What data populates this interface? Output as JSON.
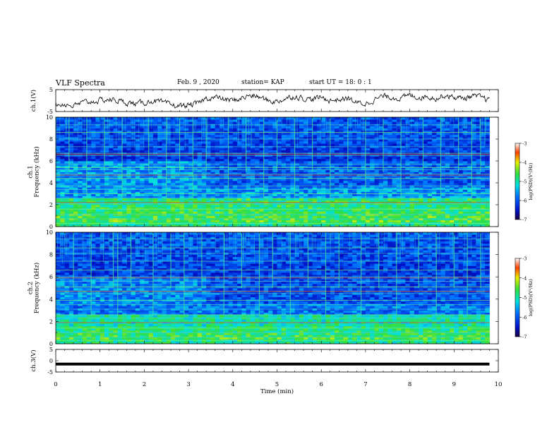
{
  "header": {
    "title": "VLF Spectra",
    "date": "Feb. 9  , 2020",
    "station": "station= KAP",
    "start": "start UT =   18: 0  : 1"
  },
  "chart_data": [
    {
      "type": "line",
      "name": "ch1-waveform",
      "ylabel": "ch.1(V)",
      "yticks": [
        "5",
        "-5"
      ],
      "ylim": [
        -5,
        5
      ],
      "xlim": [
        0,
        10
      ],
      "x": [
        0,
        0.2,
        0.4,
        0.6,
        0.8,
        1.0,
        1.2,
        1.4,
        1.6,
        1.8,
        2.0,
        2.2,
        2.4,
        2.6,
        2.8,
        3.0,
        3.2,
        3.4,
        3.6,
        3.8,
        4.0,
        4.2,
        4.4,
        4.6,
        4.8,
        5.0,
        5.2,
        5.4,
        5.6,
        5.8,
        6.0,
        6.2,
        6.4,
        6.6,
        6.8,
        7.0,
        7.2,
        7.4,
        7.6,
        7.8,
        8.0,
        8.2,
        8.4,
        8.6,
        8.8,
        9.0,
        9.2,
        9.4,
        9.6,
        9.8
      ],
      "y": [
        -2,
        -1.5,
        -2.5,
        -1,
        -0.5,
        0,
        0.5,
        0,
        -1,
        -1.5,
        -1,
        0,
        -1,
        -2,
        -2.5,
        -2,
        -1.5,
        1,
        1.5,
        0.5,
        0,
        1,
        2.5,
        1.5,
        0,
        -0.5,
        1,
        2,
        1,
        0.5,
        1.5,
        0,
        0.5,
        1,
        -1,
        -1.5,
        0.5,
        2,
        1.5,
        1,
        2.5,
        1.5,
        2,
        1,
        2.5,
        1.5,
        1,
        2,
        1.5,
        0
      ]
    },
    {
      "type": "heatmap",
      "name": "ch1-spectrogram",
      "ylabel": "ch.1\nFrequency  (kHz)",
      "yticks": [
        "0",
        "2",
        "4",
        "6",
        "8",
        "10"
      ],
      "ylim": [
        0,
        10
      ],
      "xlim": [
        0,
        10
      ],
      "colorbar": {
        "label": "log(PSD)(V²/Hz)",
        "ticks": [
          "-3",
          "-4",
          "-5",
          "-6",
          "-7"
        ],
        "range": [
          -7,
          -3
        ]
      },
      "bands_khz": [
        0.3,
        0.7,
        1.1,
        1.6,
        2.1,
        2.6,
        3.0,
        3.4,
        3.7,
        4.4,
        4.8,
        5.2,
        5.4,
        5.7,
        6.5,
        6.7,
        7.3,
        8.0,
        8.6,
        9.3
      ],
      "bright_band_khz": [
        2.2,
        4.7,
        6.6
      ],
      "low_freq_level": [
        -4.5,
        -4.8,
        -5.0,
        -5.3
      ],
      "bursts_min": [
        0.3,
        0.7,
        1.1,
        1.5,
        2.1,
        2.5,
        2.8,
        3.1,
        3.4,
        3.9,
        4.3,
        4.7,
        5.0,
        5.4,
        5.8,
        6.2,
        6.6,
        7.0,
        7.4,
        7.8,
        8.3,
        8.7,
        9.1,
        9.4,
        9.6
      ],
      "segment_change_min": 3.35
    },
    {
      "type": "heatmap",
      "name": "ch2-spectrogram",
      "ylabel": "ch.2\nFrequency  (kHz)",
      "yticks": [
        "0",
        "2",
        "4",
        "6",
        "8",
        "10"
      ],
      "ylim": [
        0,
        10
      ],
      "xlim": [
        0,
        10
      ],
      "colorbar": {
        "label": "log(PSD)(V²/Hz)",
        "ticks": [
          "-3",
          "-4",
          "-5",
          "-6",
          "-7"
        ],
        "range": [
          -7,
          -3
        ]
      },
      "bands_khz": [
        0.3,
        0.6,
        1.0,
        1.4,
        1.9,
        2.3,
        2.6,
        3.1,
        3.5,
        3.9,
        4.5,
        4.7,
        5.1,
        5.6,
        6.0,
        6.6,
        7.4,
        8.1,
        8.6,
        9.4
      ],
      "bright_band_khz": [
        1.9,
        4.7,
        5.9
      ],
      "low_freq_level": [
        -4.6,
        -5.0,
        -5.2,
        -5.4
      ],
      "bursts_min": [
        0.4,
        0.8,
        1.3,
        1.4,
        1.7,
        2.2,
        2.6,
        2.9,
        3.3,
        3.8,
        4.2,
        4.6,
        4.9,
        5.3,
        5.7,
        6.1,
        6.4,
        6.9,
        7.3,
        7.7,
        8.2,
        8.6,
        9.0,
        9.3,
        9.6
      ],
      "segment_change_min": 3.35
    },
    {
      "type": "line",
      "name": "ch3-waveform",
      "ylabel": "ch.3(V)",
      "yticks": [
        "5",
        "0",
        "-5"
      ],
      "ylim": [
        -5,
        5
      ],
      "xlim": [
        0,
        10
      ],
      "x": [
        0,
        9.8
      ],
      "y": [
        -1.5,
        -1.5
      ]
    }
  ],
  "x_axis": {
    "label": "Time  (min)",
    "ticks": [
      "0",
      "1",
      "2",
      "3",
      "4",
      "5",
      "6",
      "7",
      "8",
      "9",
      "10"
    ]
  }
}
